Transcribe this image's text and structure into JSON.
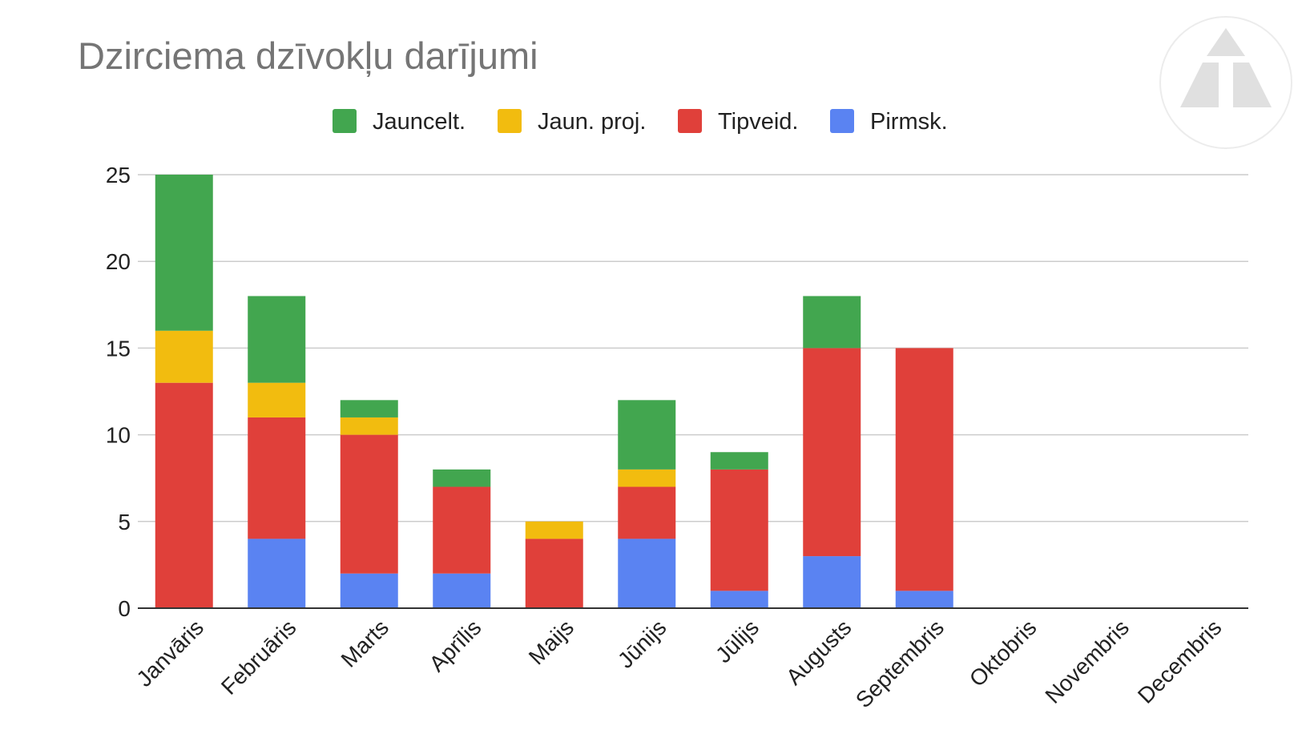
{
  "chart_data": {
    "type": "bar",
    "stacked": true,
    "title": "Dzirciema dzīvokļu darījumi",
    "xlabel": "",
    "ylabel": "",
    "ylim": [
      0,
      25
    ],
    "yticks": [
      0,
      5,
      10,
      15,
      20,
      25
    ],
    "grid": true,
    "legend_position": "top",
    "categories": [
      "Janvāris",
      "Februāris",
      "Marts",
      "Aprīlis",
      "Maijs",
      "Jūnijs",
      "Jūlijs",
      "Augusts",
      "Septembris",
      "Oktobris",
      "Novembris",
      "Decembris"
    ],
    "series": [
      {
        "name": "Pirmsk.",
        "color": "#5a83f2",
        "values": [
          0,
          4,
          2,
          2,
          0,
          4,
          1,
          3,
          1,
          0,
          0,
          0
        ]
      },
      {
        "name": "Tipveid.",
        "color": "#e0403a",
        "values": [
          13,
          7,
          8,
          5,
          4,
          3,
          7,
          12,
          14,
          0,
          0,
          0
        ]
      },
      {
        "name": "Jaun. proj.",
        "color": "#f2bc0f",
        "values": [
          3,
          2,
          1,
          0,
          1,
          1,
          0,
          0,
          0,
          0,
          0,
          0
        ]
      },
      {
        "name": "Jauncelt.",
        "color": "#42a64f",
        "values": [
          9,
          5,
          1,
          1,
          0,
          4,
          1,
          3,
          0,
          0,
          0,
          0
        ]
      }
    ],
    "legend_order": [
      "Jauncelt.",
      "Jaun. proj.",
      "Tipveid.",
      "Pirmsk."
    ]
  },
  "logo": {
    "icon": "triangle-logo-icon",
    "color": "#e0e0e0"
  }
}
